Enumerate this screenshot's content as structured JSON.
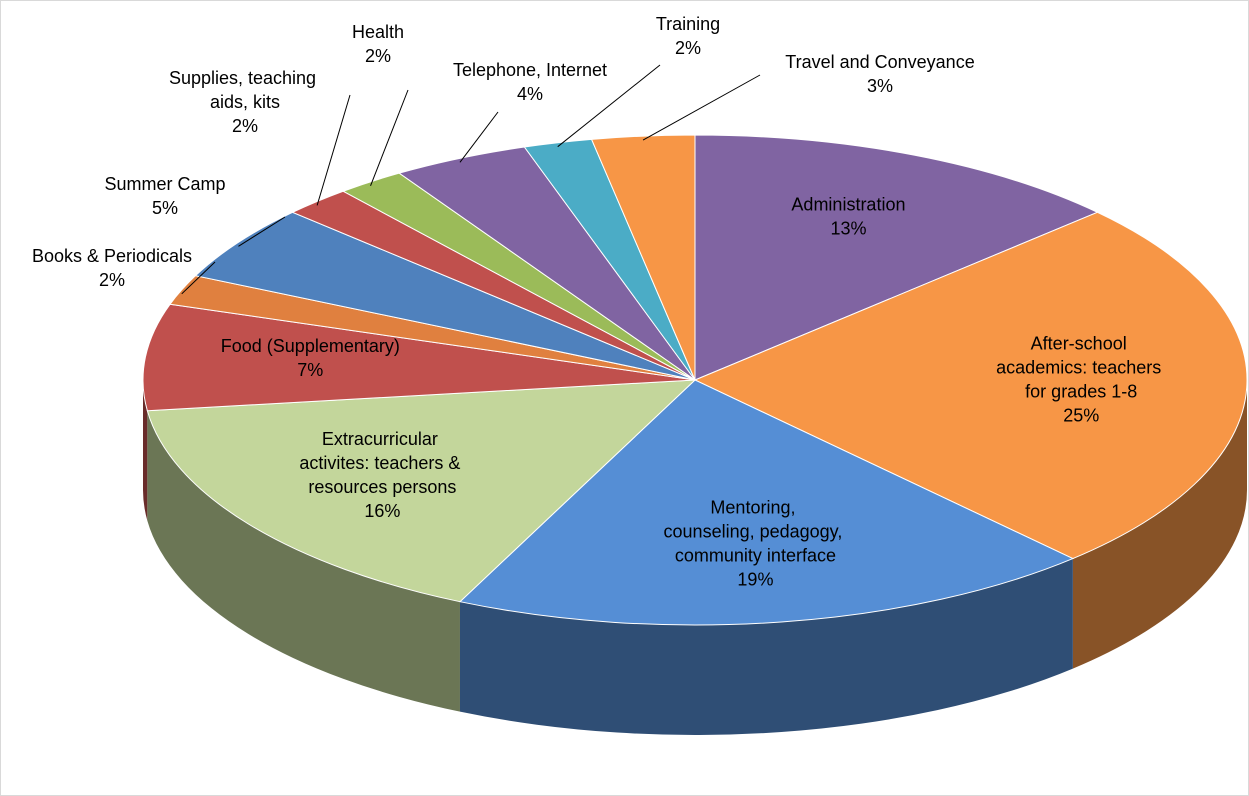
{
  "chart_data": {
    "type": "pie3d",
    "categories": [
      "Administration",
      "After-school academics: teachers for grades 1-8",
      "Mentoring, counseling, pedagogy, community interface",
      "Extracurricular activites: teachers & resources persons",
      "Food (Supplementary)",
      "Books & Periodicals",
      "Summer Camp",
      "Supplies, teaching aids, kits",
      "Health",
      "Telephone, Internet",
      "Training",
      "Travel and Conveyance"
    ],
    "values": [
      13,
      25,
      19,
      16,
      7,
      2,
      5,
      2,
      2,
      4,
      2,
      3
    ],
    "value_labels": [
      "13%",
      "25%",
      "19%",
      "16%",
      "7%",
      "2%",
      "5%",
      "2%",
      "2%",
      "4%",
      "2%",
      "3%"
    ],
    "colors": [
      "#8064a2",
      "#f79646",
      "#558ed5",
      "#c3d69b",
      "#c0504d",
      "#e0803f",
      "#4f81bd",
      "#c0504d",
      "#9bbb59",
      "#8064a2",
      "#4bacc6",
      "#f79646"
    ]
  }
}
